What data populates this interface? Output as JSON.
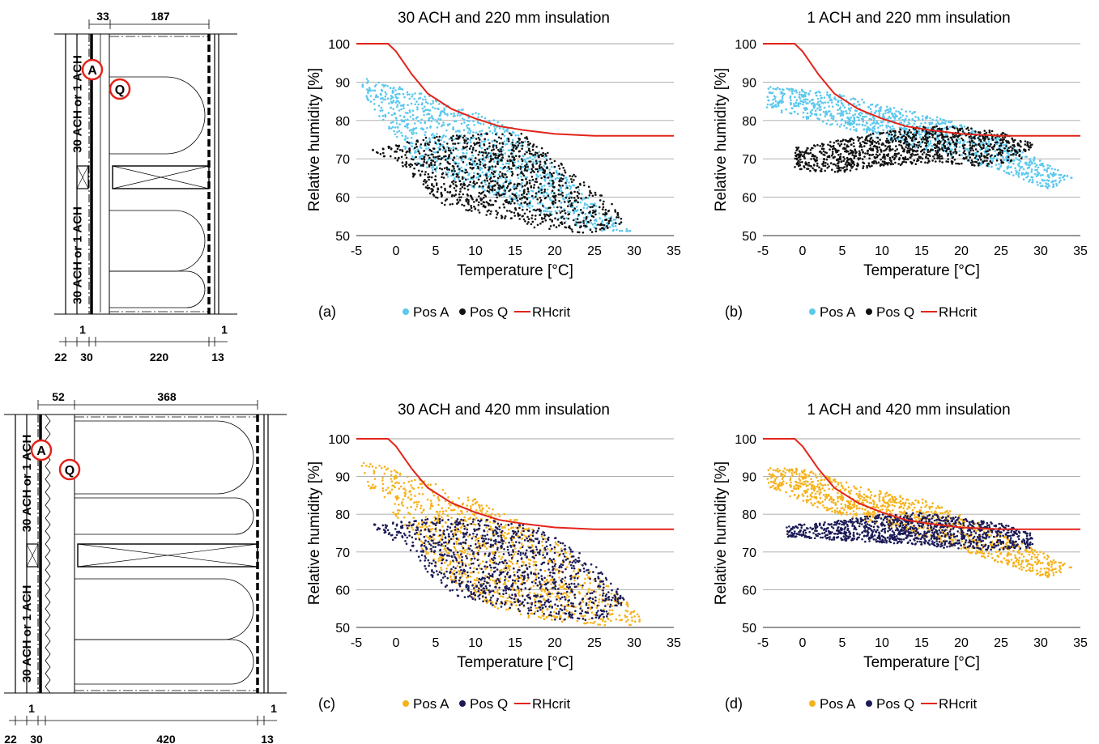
{
  "colors": {
    "pos_a_light": "#5bc8ee",
    "pos_a_orange": "#f6b21b",
    "pos_q_black": "#111111",
    "pos_q_navy": "#1b1a57",
    "rhcrit": "#e3241b",
    "grid": "#a6a6a6",
    "marker_circle": "#e3241b"
  },
  "wall_diagrams": [
    {
      "cavity_label_top": "30 ACH or 1 ACH",
      "cavity_label_bottom": "30 ACH or 1 ACH",
      "marker_a": "A",
      "marker_q": "Q",
      "dim_top_small": "33",
      "dim_top_large": "187",
      "dim_bottom_1a": "1",
      "dim_bottom_1b": "1",
      "dim_22": "22",
      "dim_30": "30",
      "dim_insulation": "220",
      "dim_13": "13"
    },
    {
      "cavity_label_top": "30 ACH or 1 ACH",
      "cavity_label_bottom": "30 ACH or 1 ACH",
      "marker_a": "A",
      "marker_q": "Q",
      "dim_top_small": "52",
      "dim_top_large": "368",
      "dim_bottom_1a": "1",
      "dim_bottom_1b": "1",
      "dim_22": "22",
      "dim_30": "30",
      "dim_insulation": "420",
      "dim_13": "13"
    }
  ],
  "chart_data": [
    {
      "type": "scatter",
      "panel": "(a)",
      "title": "30 ACH and 220 mm insulation",
      "xlabel": "Temperature [°C]",
      "ylabel": "Relative humidity [%]",
      "xlim": [
        -5,
        35
      ],
      "ylim": [
        50,
        100
      ],
      "xticks": [
        -5,
        0,
        5,
        10,
        15,
        20,
        25,
        30,
        35
      ],
      "yticks": [
        50,
        60,
        70,
        80,
        90,
        100
      ],
      "grid": "horizontal",
      "legend_position": "bottom",
      "series": [
        {
          "name": "Pos A",
          "color": "#5bc8ee",
          "cloud": [
            {
              "x": -4.5,
              "y": 91.5
            },
            {
              "x": 0,
              "y": 89
            },
            {
              "x": 5,
              "y": 86
            },
            {
              "x": 10,
              "y": 82
            },
            {
              "x": 15,
              "y": 78
            },
            {
              "x": 18,
              "y": 72
            },
            {
              "x": 22,
              "y": 64
            },
            {
              "x": 26,
              "y": 57
            },
            {
              "x": 30,
              "y": 51
            },
            {
              "x": 25,
              "y": 51
            },
            {
              "x": 15,
              "y": 58
            },
            {
              "x": 8,
              "y": 64
            },
            {
              "x": 3,
              "y": 68
            },
            {
              "x": -1,
              "y": 78
            },
            {
              "x": -4.5,
              "y": 88
            }
          ]
        },
        {
          "name": "Pos Q",
          "color": "#111111",
          "cloud": [
            {
              "x": -3,
              "y": 72.5
            },
            {
              "x": 3,
              "y": 75.5
            },
            {
              "x": 10,
              "y": 76.5
            },
            {
              "x": 16,
              "y": 77
            },
            {
              "x": 19,
              "y": 72
            },
            {
              "x": 23,
              "y": 65
            },
            {
              "x": 27,
              "y": 59
            },
            {
              "x": 29,
              "y": 53
            },
            {
              "x": 24,
              "y": 50.5
            },
            {
              "x": 18,
              "y": 51.5
            },
            {
              "x": 12,
              "y": 55
            },
            {
              "x": 6,
              "y": 58
            },
            {
              "x": 3,
              "y": 63
            },
            {
              "x": 0,
              "y": 70
            },
            {
              "x": -3,
              "y": 71
            }
          ]
        },
        {
          "name": "RHcrit",
          "color": "#e3241b",
          "line": [
            {
              "x": -5,
              "y": 100
            },
            {
              "x": -1,
              "y": 100
            },
            {
              "x": 0,
              "y": 98
            },
            {
              "x": 2,
              "y": 92
            },
            {
              "x": 4,
              "y": 87
            },
            {
              "x": 7,
              "y": 83
            },
            {
              "x": 10,
              "y": 80.5
            },
            {
              "x": 13,
              "y": 78.5
            },
            {
              "x": 16,
              "y": 77.5
            },
            {
              "x": 20,
              "y": 76.5
            },
            {
              "x": 25,
              "y": 76
            },
            {
              "x": 35,
              "y": 76
            }
          ]
        }
      ]
    },
    {
      "type": "scatter",
      "panel": "(b)",
      "title": "1 ACH and 220 mm insulation",
      "xlabel": "Temperature [°C]",
      "ylabel": "Relative humidity [%]",
      "xlim": [
        -5,
        35
      ],
      "ylim": [
        50,
        100
      ],
      "xticks": [
        -5,
        0,
        5,
        10,
        15,
        20,
        25,
        30,
        35
      ],
      "yticks": [
        50,
        60,
        70,
        80,
        90,
        100
      ],
      "grid": "horizontal",
      "legend_position": "bottom",
      "series": [
        {
          "name": "Pos A",
          "color": "#5bc8ee",
          "cloud": [
            {
              "x": -4.5,
              "y": 89
            },
            {
              "x": 0,
              "y": 88
            },
            {
              "x": 5,
              "y": 87
            },
            {
              "x": 10,
              "y": 84
            },
            {
              "x": 15,
              "y": 82
            },
            {
              "x": 20,
              "y": 79
            },
            {
              "x": 25,
              "y": 75
            },
            {
              "x": 29,
              "y": 71
            },
            {
              "x": 34,
              "y": 65
            },
            {
              "x": 31,
              "y": 62
            },
            {
              "x": 26,
              "y": 66
            },
            {
              "x": 20,
              "y": 70
            },
            {
              "x": 12,
              "y": 74
            },
            {
              "x": 5,
              "y": 78
            },
            {
              "x": -4.5,
              "y": 83
            }
          ]
        },
        {
          "name": "Pos Q",
          "color": "#111111",
          "cloud": [
            {
              "x": -1,
              "y": 73
            },
            {
              "x": 5,
              "y": 75
            },
            {
              "x": 10,
              "y": 77
            },
            {
              "x": 15,
              "y": 78.5
            },
            {
              "x": 20,
              "y": 78.5
            },
            {
              "x": 25,
              "y": 77
            },
            {
              "x": 29,
              "y": 74
            },
            {
              "x": 28,
              "y": 70
            },
            {
              "x": 23,
              "y": 68
            },
            {
              "x": 17,
              "y": 69
            },
            {
              "x": 10,
              "y": 68
            },
            {
              "x": 5,
              "y": 66.5
            },
            {
              "x": -1,
              "y": 67
            }
          ]
        },
        {
          "name": "RHcrit",
          "color": "#e3241b",
          "line": [
            {
              "x": -5,
              "y": 100
            },
            {
              "x": -1,
              "y": 100
            },
            {
              "x": 0,
              "y": 98
            },
            {
              "x": 2,
              "y": 92
            },
            {
              "x": 4,
              "y": 87
            },
            {
              "x": 7,
              "y": 83
            },
            {
              "x": 10,
              "y": 80.5
            },
            {
              "x": 13,
              "y": 78.5
            },
            {
              "x": 16,
              "y": 77.5
            },
            {
              "x": 20,
              "y": 76.5
            },
            {
              "x": 25,
              "y": 76
            },
            {
              "x": 35,
              "y": 76
            }
          ]
        }
      ]
    },
    {
      "type": "scatter",
      "panel": "(c)",
      "title": "30 ACH and 420 mm insulation",
      "xlabel": "Temperature [°C]",
      "ylabel": "Relative humidity [%]",
      "xlim": [
        -5,
        35
      ],
      "ylim": [
        50,
        100
      ],
      "xticks": [
        -5,
        0,
        5,
        10,
        15,
        20,
        25,
        30,
        35
      ],
      "yticks": [
        50,
        60,
        70,
        80,
        90,
        100
      ],
      "grid": "horizontal",
      "legend_position": "bottom",
      "series": [
        {
          "name": "Pos A",
          "color": "#f6b21b",
          "cloud": [
            {
              "x": -4.5,
              "y": 94
            },
            {
              "x": 0,
              "y": 92
            },
            {
              "x": 5,
              "y": 88
            },
            {
              "x": 10,
              "y": 84
            },
            {
              "x": 15,
              "y": 79
            },
            {
              "x": 20,
              "y": 73
            },
            {
              "x": 25,
              "y": 64
            },
            {
              "x": 29,
              "y": 57
            },
            {
              "x": 32,
              "y": 50.5
            },
            {
              "x": 26,
              "y": 50.5
            },
            {
              "x": 17,
              "y": 52
            },
            {
              "x": 10,
              "y": 57
            },
            {
              "x": 5,
              "y": 66
            },
            {
              "x": 0,
              "y": 79
            },
            {
              "x": -4.5,
              "y": 90
            }
          ]
        },
        {
          "name": "Pos Q",
          "color": "#1b1a57",
          "cloud": [
            {
              "x": -3,
              "y": 77.5
            },
            {
              "x": 5,
              "y": 79
            },
            {
              "x": 12,
              "y": 78.5
            },
            {
              "x": 18,
              "y": 76.5
            },
            {
              "x": 23,
              "y": 70
            },
            {
              "x": 27,
              "y": 63
            },
            {
              "x": 29,
              "y": 57
            },
            {
              "x": 26,
              "y": 52
            },
            {
              "x": 20,
              "y": 52
            },
            {
              "x": 14,
              "y": 55
            },
            {
              "x": 8,
              "y": 58
            },
            {
              "x": 5,
              "y": 62
            },
            {
              "x": 2,
              "y": 70
            },
            {
              "x": -3,
              "y": 76.5
            }
          ]
        },
        {
          "name": "RHcrit",
          "color": "#e3241b",
          "line": [
            {
              "x": -5,
              "y": 100
            },
            {
              "x": -1,
              "y": 100
            },
            {
              "x": 0,
              "y": 98
            },
            {
              "x": 2,
              "y": 92
            },
            {
              "x": 4,
              "y": 87
            },
            {
              "x": 7,
              "y": 83
            },
            {
              "x": 10,
              "y": 80.5
            },
            {
              "x": 13,
              "y": 78.5
            },
            {
              "x": 16,
              "y": 77.5
            },
            {
              "x": 20,
              "y": 76.5
            },
            {
              "x": 25,
              "y": 76
            },
            {
              "x": 35,
              "y": 76
            }
          ]
        }
      ]
    },
    {
      "type": "scatter",
      "panel": "(d)",
      "title": "1 ACH and 420 mm insulation",
      "xlabel": "Temperature [°C]",
      "ylabel": "Relative humidity [%]",
      "xlim": [
        -5,
        35
      ],
      "ylim": [
        50,
        100
      ],
      "xticks": [
        -5,
        0,
        5,
        10,
        15,
        20,
        25,
        30,
        35
      ],
      "yticks": [
        50,
        60,
        70,
        80,
        90,
        100
      ],
      "grid": "horizontal",
      "legend_position": "bottom",
      "series": [
        {
          "name": "Pos A",
          "color": "#f6b21b",
          "cloud": [
            {
              "x": -4.5,
              "y": 92.5
            },
            {
              "x": 0,
              "y": 92
            },
            {
              "x": 5,
              "y": 89
            },
            {
              "x": 10,
              "y": 86
            },
            {
              "x": 15,
              "y": 84
            },
            {
              "x": 20,
              "y": 80
            },
            {
              "x": 25,
              "y": 75
            },
            {
              "x": 30,
              "y": 70
            },
            {
              "x": 34,
              "y": 66
            },
            {
              "x": 31,
              "y": 63
            },
            {
              "x": 25,
              "y": 67
            },
            {
              "x": 18,
              "y": 72
            },
            {
              "x": 10,
              "y": 77
            },
            {
              "x": 3,
              "y": 81
            },
            {
              "x": -4.5,
              "y": 87
            }
          ]
        },
        {
          "name": "Pos Q",
          "color": "#1b1a57",
          "cloud": [
            {
              "x": -2,
              "y": 77
            },
            {
              "x": 5,
              "y": 78.5
            },
            {
              "x": 10,
              "y": 80
            },
            {
              "x": 15,
              "y": 80.5
            },
            {
              "x": 20,
              "y": 79
            },
            {
              "x": 25,
              "y": 77.5
            },
            {
              "x": 29,
              "y": 75
            },
            {
              "x": 29,
              "y": 71
            },
            {
              "x": 24,
              "y": 70.5
            },
            {
              "x": 18,
              "y": 71
            },
            {
              "x": 10,
              "y": 72.5
            },
            {
              "x": 5,
              "y": 73
            },
            {
              "x": -2,
              "y": 74
            }
          ]
        },
        {
          "name": "RHcrit",
          "color": "#e3241b",
          "line": [
            {
              "x": -5,
              "y": 100
            },
            {
              "x": -1,
              "y": 100
            },
            {
              "x": 0,
              "y": 98
            },
            {
              "x": 2,
              "y": 92
            },
            {
              "x": 4,
              "y": 87
            },
            {
              "x": 7,
              "y": 83
            },
            {
              "x": 10,
              "y": 80.5
            },
            {
              "x": 13,
              "y": 78.5
            },
            {
              "x": 16,
              "y": 77.5
            },
            {
              "x": 20,
              "y": 76.5
            },
            {
              "x": 25,
              "y": 76
            },
            {
              "x": 35,
              "y": 76
            }
          ]
        }
      ]
    }
  ]
}
